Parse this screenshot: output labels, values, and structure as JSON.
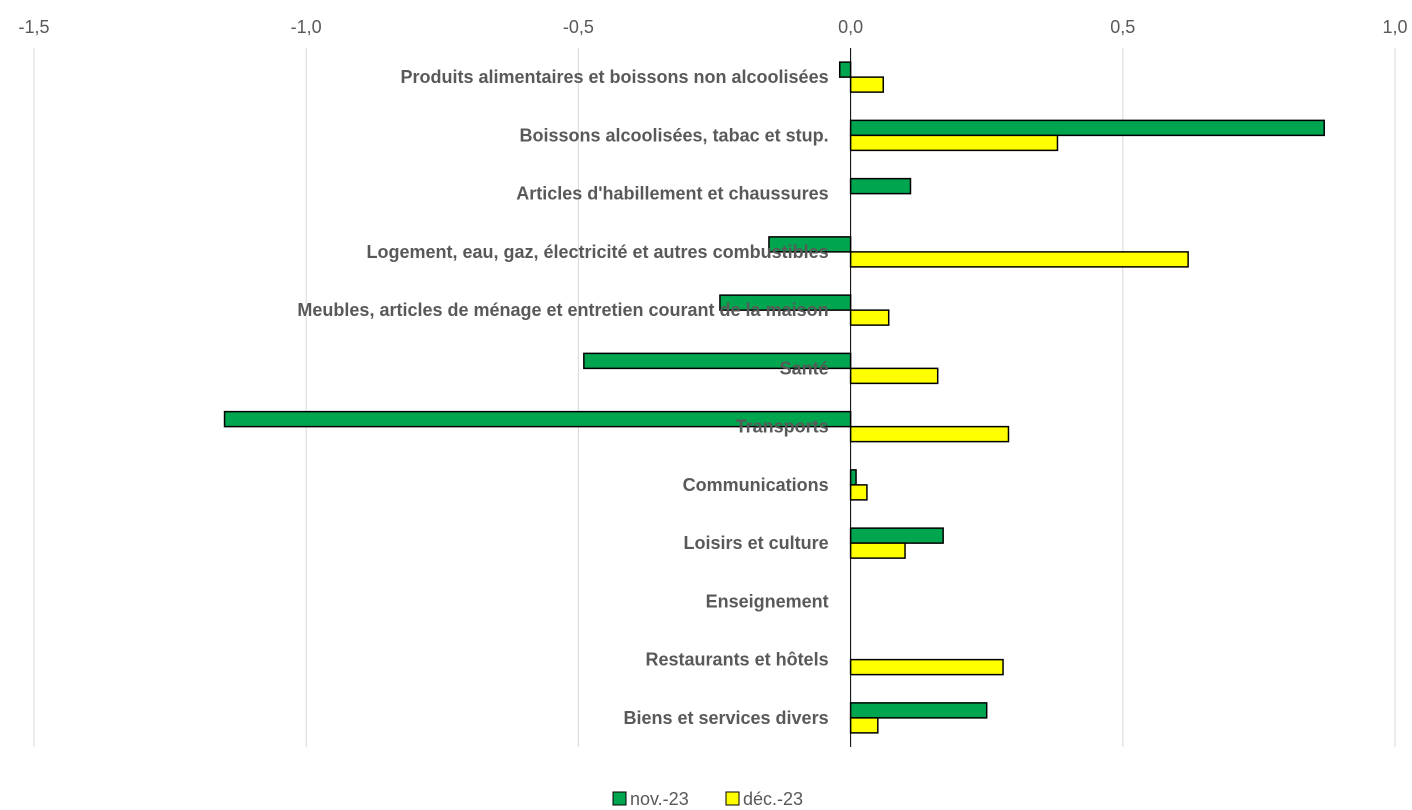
{
  "chart_data": {
    "type": "bar",
    "orientation": "horizontal",
    "categories": [
      "Produits alimentaires et boissons non alcoolisées",
      "Boissons alcoolisées, tabac et stup.",
      "Articles d'habillement et chaussures",
      "Logement, eau, gaz, électricité et autres combustibles",
      "Meubles, articles de ménage et entretien courant de la maison",
      "Santé",
      "Transports",
      "Communications",
      "Loisirs et culture",
      "Enseignement",
      "Restaurants et hôtels",
      "Biens et services divers"
    ],
    "series": [
      {
        "name": "nov.-23",
        "color": "#00A550",
        "values": [
          -0.02,
          0.87,
          0.11,
          -0.15,
          -0.24,
          -0.49,
          -1.15,
          0.01,
          0.17,
          0.0,
          0.0,
          0.25
        ]
      },
      {
        "name": "déc.-23",
        "color": "#FFFF00",
        "values": [
          0.06,
          0.38,
          0.0,
          0.62,
          0.07,
          0.16,
          0.29,
          0.03,
          0.1,
          0.0,
          0.28,
          0.05
        ]
      }
    ],
    "xlim": [
      -1.5,
      1.0
    ],
    "xticks": [
      "-1,5",
      "-1,0",
      "-0,5",
      "0,0",
      "0,5",
      "1,0"
    ],
    "xticks_position": "top",
    "grid": "vertical",
    "legend_position": "bottom-center"
  }
}
